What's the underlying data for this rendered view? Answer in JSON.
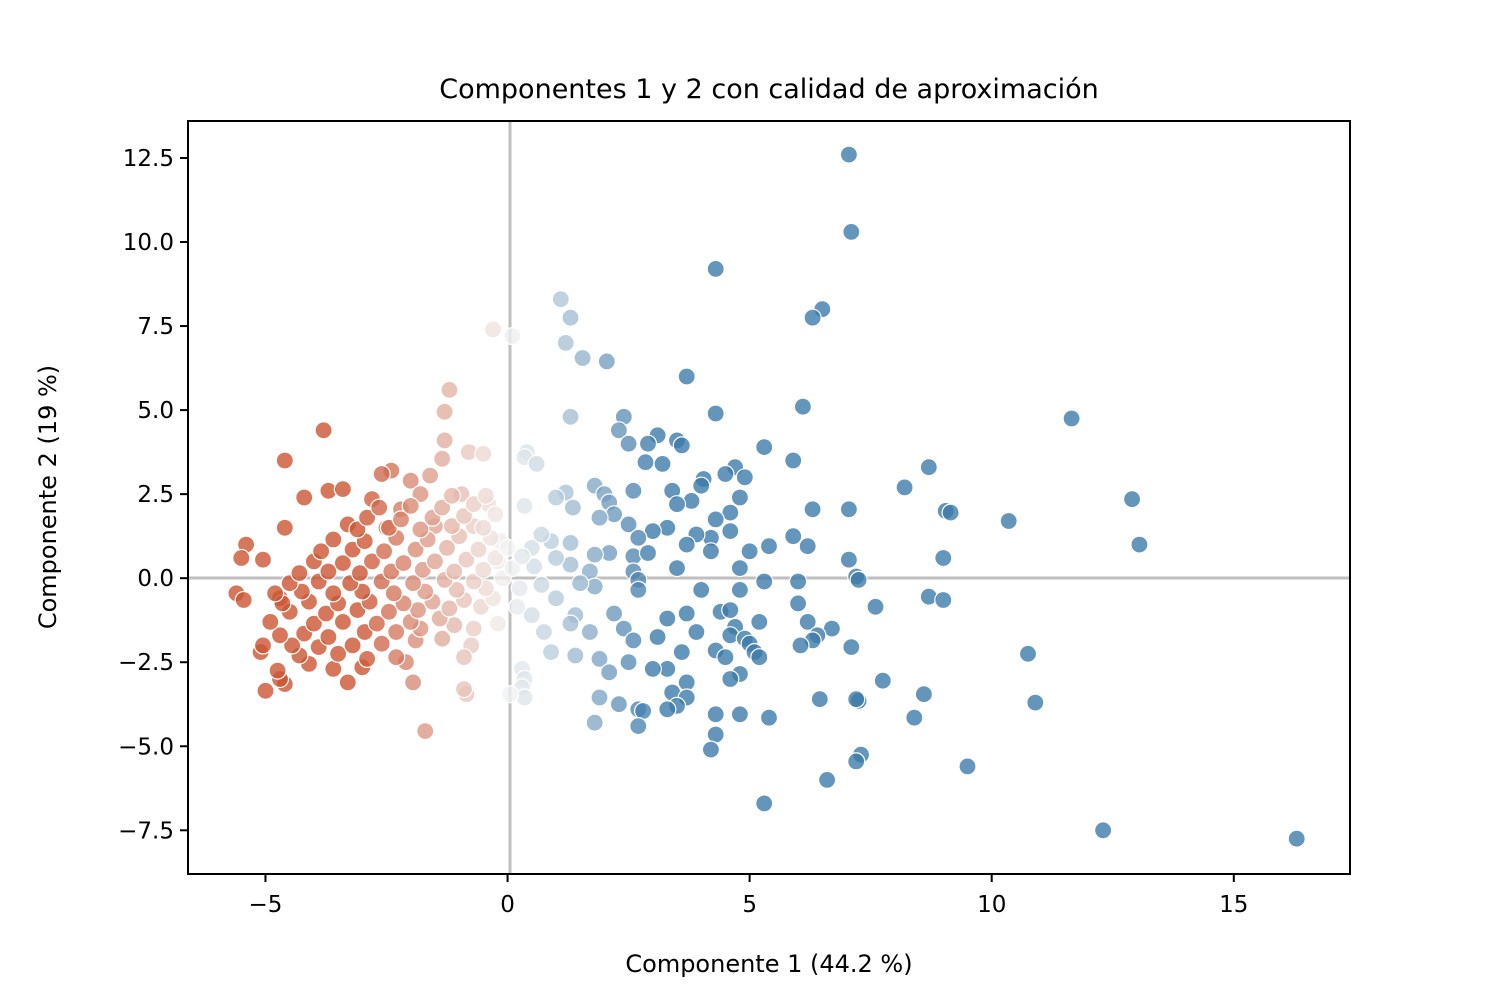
{
  "chart_data": {
    "type": "scatter",
    "title": "Componentes 1 y 2 con calidad de aproximación",
    "xlabel": "Componente 1 (44.2 %)",
    "ylabel": "Componente 2 (19 %)",
    "xlim": [
      -6.6,
      17.4
    ],
    "ylim": [
      -8.8,
      13.6
    ],
    "xticks": [
      -5,
      0,
      5,
      10,
      15
    ],
    "xtick_labels": [
      "−5",
      "0",
      "5",
      "10",
      "15"
    ],
    "yticks": [
      -7.5,
      -5.0,
      -2.5,
      0.0,
      2.5,
      5.0,
      7.5,
      10.0,
      12.5
    ],
    "ytick_labels": [
      "−7.5",
      "−5.0",
      "−2.5",
      "0.0",
      "2.5",
      "5.0",
      "7.5",
      "10.0",
      "12.5"
    ],
    "reference_lines": {
      "x": 0,
      "y": 0,
      "color": "#bfbfbf"
    },
    "grid": false,
    "legend": "none",
    "colors": {
      "negative": "#cc5533",
      "neutral": "#f3f3f3",
      "positive": "#3d7aaa"
    },
    "points": [
      {
        "x": 7.05,
        "y": 12.6
      },
      {
        "x": 7.1,
        "y": 10.3
      },
      {
        "x": 4.3,
        "y": 9.2
      },
      {
        "x": 1.1,
        "y": 8.3
      },
      {
        "x": 1.3,
        "y": 7.75
      },
      {
        "x": -0.3,
        "y": 7.4
      },
      {
        "x": 0.1,
        "y": 7.2
      },
      {
        "x": 1.2,
        "y": 7.0
      },
      {
        "x": 1.55,
        "y": 6.55
      },
      {
        "x": 2.05,
        "y": 6.45
      },
      {
        "x": 6.5,
        "y": 8.0
      },
      {
        "x": 6.3,
        "y": 7.75
      },
      {
        "x": 3.7,
        "y": 6.0
      },
      {
        "x": -1.2,
        "y": 5.6
      },
      {
        "x": 6.1,
        "y": 5.1
      },
      {
        "x": -1.3,
        "y": 4.95
      },
      {
        "x": 1.3,
        "y": 4.8
      },
      {
        "x": 4.3,
        "y": 4.9
      },
      {
        "x": 11.65,
        "y": 4.75
      },
      {
        "x": 2.4,
        "y": 4.8
      },
      {
        "x": -3.8,
        "y": 4.4
      },
      {
        "x": 2.3,
        "y": 4.4
      },
      {
        "x": 3.1,
        "y": 4.25
      },
      {
        "x": -1.3,
        "y": 4.1
      },
      {
        "x": 2.5,
        "y": 4.0
      },
      {
        "x": 2.9,
        "y": 4.0
      },
      {
        "x": 3.5,
        "y": 4.1
      },
      {
        "x": 3.6,
        "y": 3.95
      },
      {
        "x": 5.3,
        "y": 3.9
      },
      {
        "x": -0.8,
        "y": 3.75
      },
      {
        "x": -0.5,
        "y": 3.7
      },
      {
        "x": 0.4,
        "y": 3.75
      },
      {
        "x": 0.35,
        "y": 3.6
      },
      {
        "x": -1.35,
        "y": 3.55
      },
      {
        "x": -4.6,
        "y": 3.5
      },
      {
        "x": 5.9,
        "y": 3.5
      },
      {
        "x": 3.2,
        "y": 3.4
      },
      {
        "x": 2.85,
        "y": 3.45
      },
      {
        "x": 0.6,
        "y": 3.4
      },
      {
        "x": 4.7,
        "y": 3.3
      },
      {
        "x": 8.7,
        "y": 3.3
      },
      {
        "x": 4.5,
        "y": 3.1
      },
      {
        "x": 4.9,
        "y": 3.0
      },
      {
        "x": 4.05,
        "y": 2.95
      },
      {
        "x": -2.4,
        "y": 3.2
      },
      {
        "x": -2.6,
        "y": 3.1
      },
      {
        "x": -1.6,
        "y": 3.05
      },
      {
        "x": -2.0,
        "y": 2.9
      },
      {
        "x": 8.2,
        "y": 2.7
      },
      {
        "x": 1.8,
        "y": 2.75
      },
      {
        "x": 2.6,
        "y": 2.6
      },
      {
        "x": 3.4,
        "y": 2.6
      },
      {
        "x": 4.0,
        "y": 2.75
      },
      {
        "x": 1.2,
        "y": 2.55
      },
      {
        "x": -0.95,
        "y": 2.5
      },
      {
        "x": -1.8,
        "y": 2.5
      },
      {
        "x": -3.7,
        "y": 2.6
      },
      {
        "x": -3.4,
        "y": 2.65
      },
      {
        "x": -4.2,
        "y": 2.4
      },
      {
        "x": -2.8,
        "y": 2.35
      },
      {
        "x": 4.8,
        "y": 2.4
      },
      {
        "x": 3.8,
        "y": 2.3
      },
      {
        "x": 1.0,
        "y": 2.4
      },
      {
        "x": 2.0,
        "y": 2.5
      },
      {
        "x": 12.9,
        "y": 2.35
      },
      {
        "x": 0.35,
        "y": 2.15
      },
      {
        "x": 2.1,
        "y": 2.25
      },
      {
        "x": 3.5,
        "y": 2.2
      },
      {
        "x": 1.35,
        "y": 2.1
      },
      {
        "x": -0.4,
        "y": 2.2
      },
      {
        "x": -2.2,
        "y": 2.05
      },
      {
        "x": 6.3,
        "y": 2.05
      },
      {
        "x": 7.05,
        "y": 2.05
      },
      {
        "x": 9.05,
        "y": 2.0
      },
      {
        "x": 9.15,
        "y": 1.95
      },
      {
        "x": 4.6,
        "y": 1.95
      },
      {
        "x": 2.2,
        "y": 1.9
      },
      {
        "x": 1.9,
        "y": 1.8
      },
      {
        "x": 4.3,
        "y": 1.75
      },
      {
        "x": 10.35,
        "y": 1.7
      },
      {
        "x": 2.5,
        "y": 1.6
      },
      {
        "x": 3.3,
        "y": 1.5
      },
      {
        "x": 3.0,
        "y": 1.4
      },
      {
        "x": -0.7,
        "y": 1.55
      },
      {
        "x": -3.3,
        "y": 1.6
      },
      {
        "x": -2.5,
        "y": 1.5
      },
      {
        "x": -1.5,
        "y": 1.55
      },
      {
        "x": 4.6,
        "y": 1.4
      },
      {
        "x": 2.7,
        "y": 1.2
      },
      {
        "x": 5.9,
        "y": 1.25
      },
      {
        "x": 4.2,
        "y": 1.2
      },
      {
        "x": 3.9,
        "y": 1.3
      },
      {
        "x": 0.9,
        "y": 1.1
      },
      {
        "x": 1.3,
        "y": 1.05
      },
      {
        "x": -0.15,
        "y": 1.1
      },
      {
        "x": 13.05,
        "y": 1.0
      },
      {
        "x": 5.4,
        "y": 0.95
      },
      {
        "x": 6.2,
        "y": 0.95
      },
      {
        "x": 3.7,
        "y": 1.0
      },
      {
        "x": 0.5,
        "y": 0.9
      },
      {
        "x": 2.1,
        "y": 0.75
      },
      {
        "x": 4.2,
        "y": 0.8
      },
      {
        "x": 5.0,
        "y": 0.8
      },
      {
        "x": 2.6,
        "y": 0.65
      },
      {
        "x": 1.8,
        "y": 0.7
      },
      {
        "x": 2.9,
        "y": 0.75
      },
      {
        "x": 9.0,
        "y": 0.6
      },
      {
        "x": 7.05,
        "y": 0.55
      },
      {
        "x": -5.4,
        "y": 1.0
      },
      {
        "x": -5.5,
        "y": 0.6
      },
      {
        "x": -5.05,
        "y": 0.55
      },
      {
        "x": -4.6,
        "y": 1.5
      },
      {
        "x": -0.2,
        "y": 0.5
      },
      {
        "x": 0.55,
        "y": 0.35
      },
      {
        "x": 1.3,
        "y": 0.4
      },
      {
        "x": 1.7,
        "y": 0.2
      },
      {
        "x": 2.6,
        "y": 0.2
      },
      {
        "x": 3.5,
        "y": 0.3
      },
      {
        "x": 4.8,
        "y": 0.3
      },
      {
        "x": 7.2,
        "y": 0.05
      },
      {
        "x": 7.25,
        "y": -0.05
      },
      {
        "x": 5.3,
        "y": -0.1
      },
      {
        "x": 6.0,
        "y": -0.1
      },
      {
        "x": 2.7,
        "y": -0.05
      },
      {
        "x": 1.8,
        "y": -0.25
      },
      {
        "x": 2.7,
        "y": -0.35
      },
      {
        "x": 4.0,
        "y": -0.35
      },
      {
        "x": 4.8,
        "y": -0.35
      },
      {
        "x": 0.25,
        "y": -0.3
      },
      {
        "x": -5.6,
        "y": -0.45
      },
      {
        "x": -5.45,
        "y": -0.65
      },
      {
        "x": -4.7,
        "y": -0.6
      },
      {
        "x": 8.7,
        "y": -0.55
      },
      {
        "x": 9.0,
        "y": -0.65
      },
      {
        "x": 6.0,
        "y": -0.75
      },
      {
        "x": 7.6,
        "y": -0.85
      },
      {
        "x": 4.4,
        "y": -1.0
      },
      {
        "x": 4.6,
        "y": -0.95
      },
      {
        "x": 3.7,
        "y": -1.05
      },
      {
        "x": 2.2,
        "y": -1.05
      },
      {
        "x": 1.4,
        "y": -1.1
      },
      {
        "x": 5.2,
        "y": -1.3
      },
      {
        "x": 6.2,
        "y": -1.3
      },
      {
        "x": 6.7,
        "y": -1.5
      },
      {
        "x": 6.4,
        "y": -1.7
      },
      {
        "x": 3.3,
        "y": -1.2
      },
      {
        "x": 2.4,
        "y": -1.5
      },
      {
        "x": 1.3,
        "y": -1.35
      },
      {
        "x": 1.7,
        "y": -1.6
      },
      {
        "x": 0.75,
        "y": -1.6
      },
      {
        "x": 4.7,
        "y": -1.45
      },
      {
        "x": 3.9,
        "y": -1.6
      },
      {
        "x": 3.1,
        "y": -1.75
      },
      {
        "x": 2.6,
        "y": -1.85
      },
      {
        "x": 4.6,
        "y": -1.7
      },
      {
        "x": 4.9,
        "y": -1.8
      },
      {
        "x": 5.0,
        "y": -1.95
      },
      {
        "x": 6.3,
        "y": -1.85
      },
      {
        "x": 6.05,
        "y": -2.0
      },
      {
        "x": 7.1,
        "y": -2.05
      },
      {
        "x": 5.1,
        "y": -2.2
      },
      {
        "x": 5.2,
        "y": -2.35
      },
      {
        "x": 4.3,
        "y": -2.15
      },
      {
        "x": 4.5,
        "y": -2.35
      },
      {
        "x": 3.6,
        "y": -2.2
      },
      {
        "x": 2.5,
        "y": -2.5
      },
      {
        "x": 1.9,
        "y": -2.4
      },
      {
        "x": 1.4,
        "y": -2.3
      },
      {
        "x": 0.9,
        "y": -2.2
      },
      {
        "x": 0.3,
        "y": -2.7
      },
      {
        "x": 0.35,
        "y": -3.0
      },
      {
        "x": 0.3,
        "y": -3.25
      },
      {
        "x": 0.35,
        "y": -3.55
      },
      {
        "x": 0.05,
        "y": -3.45
      },
      {
        "x": -0.85,
        "y": -3.45
      },
      {
        "x": -0.9,
        "y": -3.3
      },
      {
        "x": -1.95,
        "y": -3.1
      },
      {
        "x": -0.75,
        "y": -2.0
      },
      {
        "x": -0.9,
        "y": -2.35
      },
      {
        "x": 3.3,
        "y": -2.7
      },
      {
        "x": 3.0,
        "y": -2.7
      },
      {
        "x": 2.1,
        "y": -2.8
      },
      {
        "x": 4.8,
        "y": -2.85
      },
      {
        "x": 4.6,
        "y": -3.0
      },
      {
        "x": 3.7,
        "y": -3.1
      },
      {
        "x": 3.4,
        "y": -3.4
      },
      {
        "x": 3.7,
        "y": -3.55
      },
      {
        "x": 1.9,
        "y": -3.55
      },
      {
        "x": 2.3,
        "y": -3.75
      },
      {
        "x": 3.5,
        "y": -3.8
      },
      {
        "x": 2.7,
        "y": -3.9
      },
      {
        "x": 3.3,
        "y": -3.9
      },
      {
        "x": 2.8,
        "y": -3.95
      },
      {
        "x": 4.3,
        "y": -4.05
      },
      {
        "x": 4.8,
        "y": -4.05
      },
      {
        "x": 5.4,
        "y": -4.15
      },
      {
        "x": 2.7,
        "y": -4.4
      },
      {
        "x": 1.8,
        "y": -4.3
      },
      {
        "x": 4.3,
        "y": -4.65
      },
      {
        "x": 4.2,
        "y": -5.1
      },
      {
        "x": 6.45,
        "y": -3.6
      },
      {
        "x": 7.25,
        "y": -3.65
      },
      {
        "x": 7.2,
        "y": -3.6
      },
      {
        "x": 7.75,
        "y": -3.05
      },
      {
        "x": 8.6,
        "y": -3.45
      },
      {
        "x": 8.4,
        "y": -4.15
      },
      {
        "x": 7.3,
        "y": -5.25
      },
      {
        "x": 7.2,
        "y": -5.45
      },
      {
        "x": 6.6,
        "y": -6.0
      },
      {
        "x": 5.3,
        "y": -6.7
      },
      {
        "x": 9.5,
        "y": -5.6
      },
      {
        "x": 10.75,
        "y": -2.25
      },
      {
        "x": 10.9,
        "y": -3.7
      },
      {
        "x": 12.3,
        "y": -7.5
      },
      {
        "x": 16.3,
        "y": -7.75
      },
      {
        "x": -1.7,
        "y": -4.55
      },
      {
        "x": -5.0,
        "y": -3.35
      },
      {
        "x": -4.6,
        "y": -3.15
      },
      {
        "x": -4.7,
        "y": -3.0
      },
      {
        "x": -3.3,
        "y": -3.1
      },
      {
        "x": -4.75,
        "y": -2.75
      },
      {
        "x": -4.1,
        "y": -2.55
      },
      {
        "x": -3.6,
        "y": -2.7
      },
      {
        "x": -3.0,
        "y": -2.65
      },
      {
        "x": -2.1,
        "y": -2.5
      },
      {
        "x": -2.3,
        "y": -2.35
      },
      {
        "x": -2.9,
        "y": -2.4
      },
      {
        "x": -3.5,
        "y": -2.25
      },
      {
        "x": -4.3,
        "y": -2.3
      },
      {
        "x": -5.1,
        "y": -2.2
      },
      {
        "x": -5.05,
        "y": -2.0
      },
      {
        "x": -4.45,
        "y": -2.0
      },
      {
        "x": -3.9,
        "y": -2.05
      },
      {
        "x": -3.2,
        "y": -2.0
      },
      {
        "x": -2.6,
        "y": -1.95
      },
      {
        "x": -1.9,
        "y": -1.85
      },
      {
        "x": -1.35,
        "y": -1.8
      },
      {
        "x": -4.7,
        "y": -1.7
      },
      {
        "x": -4.2,
        "y": -1.65
      },
      {
        "x": -3.7,
        "y": -1.75
      },
      {
        "x": -2.95,
        "y": -1.6
      },
      {
        "x": -2.3,
        "y": -1.6
      },
      {
        "x": -1.8,
        "y": -1.5
      },
      {
        "x": -1.1,
        "y": -1.4
      },
      {
        "x": -0.7,
        "y": -1.5
      },
      {
        "x": -4.9,
        "y": -1.3
      },
      {
        "x": -4.0,
        "y": -1.35
      },
      {
        "x": -3.4,
        "y": -1.3
      },
      {
        "x": -2.7,
        "y": -1.35
      },
      {
        "x": -2.0,
        "y": -1.3
      },
      {
        "x": -1.4,
        "y": -1.2
      },
      {
        "x": -4.5,
        "y": -1.0
      },
      {
        "x": -3.75,
        "y": -1.05
      },
      {
        "x": -3.1,
        "y": -0.95
      },
      {
        "x": -2.45,
        "y": -1.0
      },
      {
        "x": -1.85,
        "y": -0.95
      },
      {
        "x": -1.2,
        "y": -0.9
      },
      {
        "x": -0.55,
        "y": -0.85
      },
      {
        "x": -4.65,
        "y": -0.75
      },
      {
        "x": -4.1,
        "y": -0.7
      },
      {
        "x": -3.5,
        "y": -0.75
      },
      {
        "x": -2.85,
        "y": -0.7
      },
      {
        "x": -2.15,
        "y": -0.75
      },
      {
        "x": -1.55,
        "y": -0.7
      },
      {
        "x": -0.9,
        "y": -0.65
      },
      {
        "x": -0.3,
        "y": -0.6
      },
      {
        "x": -4.8,
        "y": -0.45
      },
      {
        "x": -4.25,
        "y": -0.4
      },
      {
        "x": -3.6,
        "y": -0.45
      },
      {
        "x": -3.0,
        "y": -0.4
      },
      {
        "x": -2.35,
        "y": -0.45
      },
      {
        "x": -1.7,
        "y": -0.4
      },
      {
        "x": -1.05,
        "y": -0.35
      },
      {
        "x": -0.45,
        "y": -0.3
      },
      {
        "x": -4.5,
        "y": -0.15
      },
      {
        "x": -3.9,
        "y": -0.1
      },
      {
        "x": -3.25,
        "y": -0.15
      },
      {
        "x": -2.6,
        "y": -0.1
      },
      {
        "x": -1.95,
        "y": -0.15
      },
      {
        "x": -1.3,
        "y": -0.05
      },
      {
        "x": -0.7,
        "y": -0.1
      },
      {
        "x": -0.1,
        "y": 0.0
      },
      {
        "x": -4.3,
        "y": 0.15
      },
      {
        "x": -3.7,
        "y": 0.2
      },
      {
        "x": -3.05,
        "y": 0.15
      },
      {
        "x": -2.4,
        "y": 0.2
      },
      {
        "x": -1.75,
        "y": 0.25
      },
      {
        "x": -1.1,
        "y": 0.2
      },
      {
        "x": -0.5,
        "y": 0.25
      },
      {
        "x": 0.1,
        "y": 0.3
      },
      {
        "x": -4.0,
        "y": 0.5
      },
      {
        "x": -3.4,
        "y": 0.45
      },
      {
        "x": -2.8,
        "y": 0.5
      },
      {
        "x": -2.15,
        "y": 0.45
      },
      {
        "x": -1.5,
        "y": 0.5
      },
      {
        "x": -0.85,
        "y": 0.55
      },
      {
        "x": -0.25,
        "y": 0.6
      },
      {
        "x": -3.85,
        "y": 0.8
      },
      {
        "x": -3.2,
        "y": 0.85
      },
      {
        "x": -2.55,
        "y": 0.8
      },
      {
        "x": -1.9,
        "y": 0.85
      },
      {
        "x": -1.25,
        "y": 0.9
      },
      {
        "x": -0.6,
        "y": 0.85
      },
      {
        "x": 0.0,
        "y": 0.9
      },
      {
        "x": -3.6,
        "y": 1.15
      },
      {
        "x": -2.95,
        "y": 1.1
      },
      {
        "x": -2.3,
        "y": 1.2
      },
      {
        "x": -1.65,
        "y": 1.15
      },
      {
        "x": -1.0,
        "y": 1.25
      },
      {
        "x": -0.35,
        "y": 1.2
      },
      {
        "x": -3.1,
        "y": 1.45
      },
      {
        "x": -2.45,
        "y": 1.5
      },
      {
        "x": -1.8,
        "y": 1.45
      },
      {
        "x": -1.15,
        "y": 1.55
      },
      {
        "x": -0.5,
        "y": 1.5
      },
      {
        "x": -2.9,
        "y": 1.8
      },
      {
        "x": -2.2,
        "y": 1.75
      },
      {
        "x": -1.55,
        "y": 1.8
      },
      {
        "x": -0.9,
        "y": 1.85
      },
      {
        "x": -0.25,
        "y": 1.9
      },
      {
        "x": -2.65,
        "y": 2.1
      },
      {
        "x": -2.0,
        "y": 2.15
      },
      {
        "x": -1.35,
        "y": 2.1
      },
      {
        "x": -0.7,
        "y": 2.2
      },
      {
        "x": -1.15,
        "y": 2.45
      },
      {
        "x": -0.45,
        "y": 2.45
      },
      {
        "x": 0.7,
        "y": 1.3
      },
      {
        "x": 1.0,
        "y": 0.6
      },
      {
        "x": 1.5,
        "y": -0.15
      },
      {
        "x": 1.0,
        "y": -0.6
      },
      {
        "x": 0.5,
        "y": -1.1
      },
      {
        "x": -0.2,
        "y": -1.35
      },
      {
        "x": 0.2,
        "y": -0.85
      },
      {
        "x": 0.7,
        "y": -0.2
      },
      {
        "x": 0.3,
        "y": 0.65
      }
    ]
  }
}
